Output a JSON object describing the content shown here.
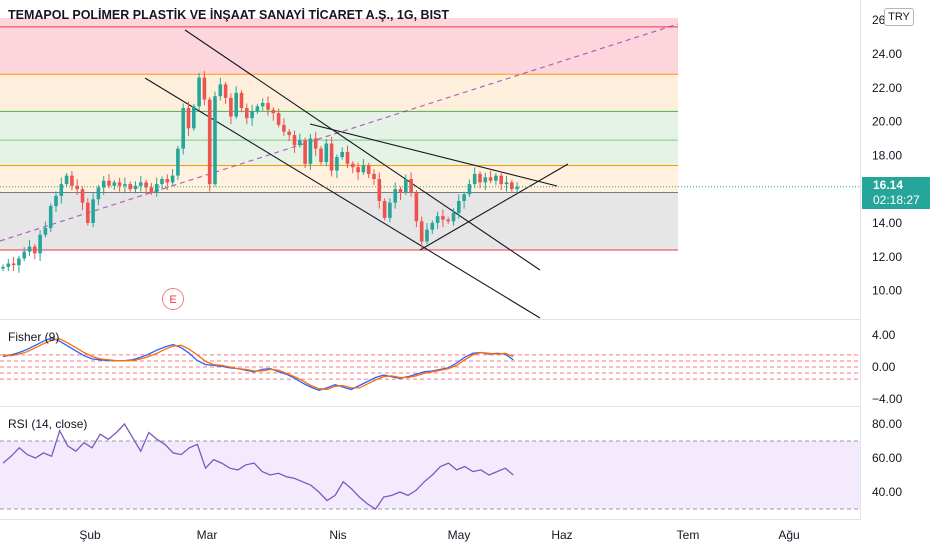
{
  "header": {
    "title": "TEMAPOL POLİMER PLASTİK VE İNŞAAT SANAYİ TİCARET A.Ş., 1G, BIST",
    "currency": "TRY",
    "last_price": "16.14",
    "countdown": "02:18:27",
    "earnings_marker": "E"
  },
  "colors": {
    "up": "#26a69a",
    "down": "#ef5350",
    "fisher_1": "#2962ff",
    "fisher_2": "#ff6d00",
    "rsi": "#7e57c2",
    "rsi_band": "#f3ebfd",
    "price_line": "#26a69a"
  },
  "chart_data": [
    {
      "type": "candlestick",
      "name": "price",
      "x_ticks": [
        "Şub",
        "Mar",
        "Nis",
        "May",
        "Haz",
        "Tem",
        "Ağu"
      ],
      "y_ticks": [
        "26.00",
        "24.00",
        "22.00",
        "20.00",
        "18.00",
        "16.00",
        "14.00",
        "12.00",
        "10.00"
      ],
      "ylim": [
        8.3,
        26.8
      ],
      "close": [
        11.4,
        11.6,
        11.5,
        11.9,
        12.3,
        12.6,
        12.2,
        13.3,
        13.7,
        15.0,
        15.6,
        16.3,
        16.8,
        16.2,
        16.0,
        15.2,
        14.0,
        15.4,
        16.1,
        16.5,
        16.2,
        16.4,
        16.2,
        16.3,
        16.0,
        16.2,
        16.4,
        16.1,
        15.8,
        16.3,
        16.6,
        16.4,
        16.8,
        18.4,
        20.8,
        19.6,
        20.9,
        22.6,
        21.3,
        16.3,
        21.5,
        22.2,
        21.4,
        20.3,
        21.7,
        20.8,
        20.2,
        20.6,
        20.9,
        21.1,
        20.7,
        20.5,
        19.8,
        19.4,
        19.2,
        18.6,
        18.9,
        17.5,
        19.0,
        18.4,
        17.6,
        18.7,
        17.1,
        17.9,
        18.2,
        17.5,
        17.3,
        17.0,
        17.4,
        16.9,
        16.6,
        15.3,
        14.3,
        15.2,
        16.0,
        15.8,
        16.6,
        15.8,
        14.1,
        12.9,
        13.6,
        14.0,
        14.4,
        14.2,
        14.1,
        14.6,
        15.3,
        15.7,
        16.3,
        16.9,
        16.4,
        16.7,
        16.5,
        16.8,
        16.3,
        16.4,
        16.0,
        16.14
      ],
      "levels": [
        {
          "value": 25.6,
          "color": "#f23645",
          "fill": "#fcd5dd"
        },
        {
          "value": 22.8,
          "color": "#ff9800",
          "fill": "#feefdc"
        },
        {
          "value": 20.6,
          "color": "#4caf50",
          "fill": "#e4f3e5"
        },
        {
          "value": 18.9,
          "color": "#81c784",
          "fill": "#e4f3e5"
        },
        {
          "value": 17.4,
          "color": "#ff9800",
          "fill": "#fff1dd"
        },
        {
          "value": 15.8,
          "color": "#787b86",
          "fill": "#e6e6e7"
        },
        {
          "value": 12.4,
          "color": "#f23645",
          "fill": null
        }
      ]
    },
    {
      "type": "line",
      "name": "Fisher (9)",
      "y_ticks": [
        "4.00",
        "0.00",
        "−4.00"
      ],
      "ylim": [
        -4.6,
        4.6
      ],
      "reference_lines": [
        1.5,
        0.75,
        0,
        -0.75,
        -1.5
      ],
      "series": [
        {
          "name": "fisher",
          "values": [
            1.3,
            1.5,
            1.8,
            2.2,
            2.7,
            3.2,
            3.6,
            3.2,
            2.6,
            2.0,
            1.4,
            1.0,
            0.9,
            0.8,
            0.8,
            0.8,
            0.9,
            1.2,
            1.6,
            2.1,
            2.5,
            2.8,
            2.4,
            1.7,
            0.8,
            0.3,
            0.2,
            0.1,
            -0.1,
            -0.2,
            -0.4,
            -0.6,
            -0.3,
            -0.2,
            -0.6,
            -0.9,
            -1.4,
            -2.0,
            -2.5,
            -2.9,
            -2.6,
            -2.2,
            -2.5,
            -2.8,
            -2.3,
            -1.8,
            -1.3,
            -1.0,
            -1.2,
            -1.4,
            -1.2,
            -0.9,
            -0.6,
            -0.5,
            -0.3,
            -0.1,
            0.5,
            1.2,
            1.7,
            1.8,
            1.6,
            1.7,
            1.6,
            0.9
          ]
        },
        {
          "name": "trigger",
          "values": [
            1.5,
            1.4,
            1.6,
            1.9,
            2.4,
            2.9,
            3.3,
            3.5,
            3.0,
            2.4,
            1.8,
            1.3,
            1.0,
            0.9,
            0.8,
            0.8,
            0.8,
            1.0,
            1.3,
            1.7,
            2.2,
            2.6,
            2.7,
            2.2,
            1.5,
            0.7,
            0.3,
            0.2,
            0.0,
            -0.2,
            -0.3,
            -0.5,
            -0.5,
            -0.3,
            -0.4,
            -0.8,
            -1.2,
            -1.7,
            -2.3,
            -2.7,
            -2.8,
            -2.4,
            -2.3,
            -2.6,
            -2.6,
            -2.1,
            -1.6,
            -1.2,
            -1.1,
            -1.3,
            -1.3,
            -1.1,
            -0.8,
            -0.6,
            -0.4,
            -0.2,
            0.2,
            0.9,
            1.5,
            1.8,
            1.7,
            1.6,
            1.7,
            1.3
          ]
        }
      ]
    },
    {
      "type": "line",
      "name": "RSI (14, close)",
      "y_ticks": [
        "80.00",
        "60.00",
        "40.00"
      ],
      "ylim": [
        27,
        88
      ],
      "band": [
        30,
        70
      ],
      "series": [
        {
          "name": "rsi",
          "values": [
            57,
            61,
            66,
            62,
            60,
            63,
            61,
            76,
            67,
            64,
            69,
            66,
            74,
            71,
            75,
            80,
            72,
            64,
            75,
            71,
            68,
            63,
            62,
            66,
            68,
            54,
            59,
            57,
            54,
            53,
            56,
            57,
            52,
            50,
            51,
            49,
            48,
            46,
            44,
            40,
            35,
            38,
            46,
            42,
            37,
            33,
            30,
            37,
            38,
            40,
            38,
            41,
            46,
            50,
            55,
            57,
            53,
            55,
            52,
            53,
            50,
            52,
            54,
            50
          ]
        }
      ]
    }
  ]
}
